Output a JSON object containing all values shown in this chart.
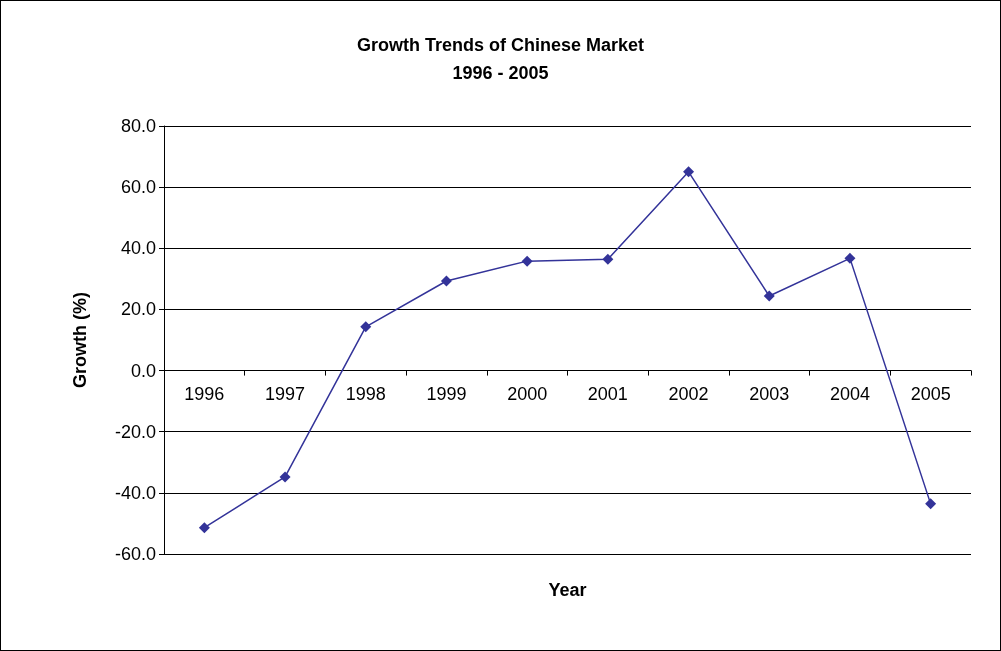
{
  "chart_data": {
    "type": "line",
    "title": "Growth Trends of Chinese Market",
    "subtitle": "1996 - 2005",
    "xlabel": "Year",
    "ylabel": "Growth (%)",
    "categories": [
      "1996",
      "1997",
      "1998",
      "1999",
      "2000",
      "2001",
      "2002",
      "2003",
      "2004",
      "2005"
    ],
    "series": [
      {
        "color": "#333399",
        "values": [
          -51.4,
          -34.8,
          14.3,
          29.3,
          35.8,
          36.4,
          65.0,
          24.4,
          36.7,
          -43.6
        ]
      }
    ],
    "ylim": [
      -60,
      80
    ],
    "yticks": [
      {
        "value": -60,
        "label": "-60.0"
      },
      {
        "value": -40,
        "label": "-40.0"
      },
      {
        "value": -20,
        "label": "-20.0"
      },
      {
        "value": 0,
        "label": "0.0"
      },
      {
        "value": 20,
        "label": "20.0"
      },
      {
        "value": 40,
        "label": "40.0"
      },
      {
        "value": 60,
        "label": "60.0"
      },
      {
        "value": 80,
        "label": "80.0"
      }
    ],
    "grid": "y",
    "marker": "diamond",
    "line_style": "solid"
  }
}
